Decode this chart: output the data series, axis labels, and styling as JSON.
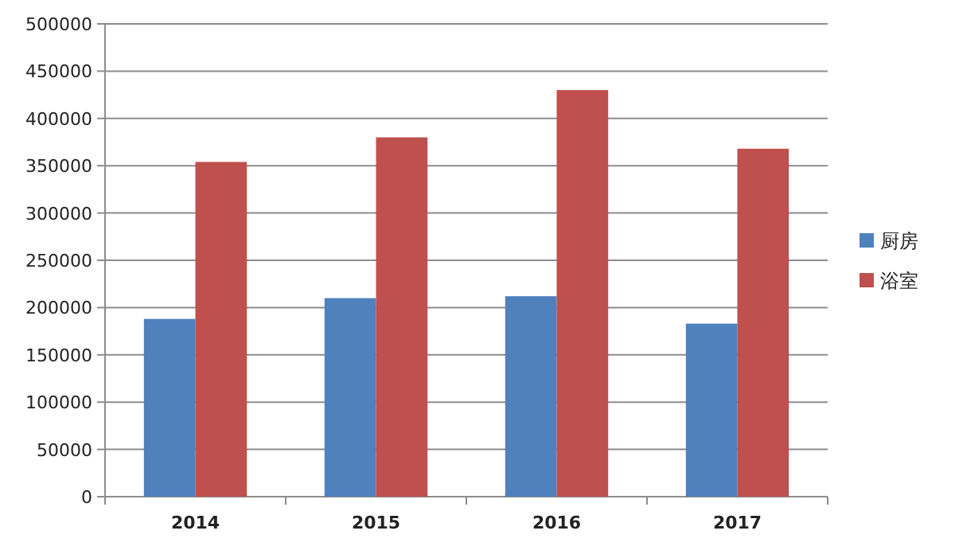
{
  "chart_data": {
    "type": "bar",
    "categories": [
      "2014",
      "2015",
      "2016",
      "2017"
    ],
    "series": [
      {
        "name": "厨房",
        "color": "#4f81bd",
        "values": [
          188000,
          210000,
          212000,
          183000
        ]
      },
      {
        "name": "浴室",
        "color": "#c0504d",
        "values": [
          354000,
          380000,
          430000,
          368000
        ]
      }
    ],
    "ylim": [
      0,
      500000
    ],
    "yticks": [
      0,
      50000,
      100000,
      150000,
      200000,
      250000,
      300000,
      350000,
      400000,
      450000,
      500000
    ],
    "grid": "y",
    "legend": "right"
  }
}
